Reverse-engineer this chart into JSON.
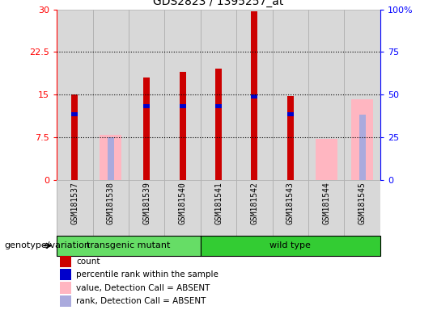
{
  "title": "GDS2823 / 1395257_at",
  "samples": [
    "GSM181537",
    "GSM181538",
    "GSM181539",
    "GSM181540",
    "GSM181541",
    "GSM181542",
    "GSM181543",
    "GSM181544",
    "GSM181545"
  ],
  "count_values": [
    15.0,
    null,
    18.0,
    19.0,
    19.5,
    29.7,
    14.7,
    null,
    null
  ],
  "rank_values": [
    11.5,
    null,
    13.0,
    13.0,
    13.0,
    14.7,
    11.5,
    null,
    null
  ],
  "absent_value": [
    null,
    7.9,
    null,
    null,
    null,
    null,
    null,
    7.2,
    14.2
  ],
  "absent_rank": [
    null,
    null,
    null,
    null,
    null,
    null,
    null,
    null,
    11.5
  ],
  "absent_rank2": [
    null,
    7.5,
    null,
    null,
    null,
    null,
    null,
    null,
    null
  ],
  "groups": [
    {
      "label": "transgenic mutant",
      "start": 0,
      "end": 3,
      "color": "#66dd66"
    },
    {
      "label": "wild type",
      "start": 4,
      "end": 8,
      "color": "#33cc33"
    }
  ],
  "group_label": "genotype/variation",
  "ylim_left": [
    0,
    30
  ],
  "ylim_right": [
    0,
    100
  ],
  "yticks_left": [
    0,
    7.5,
    15,
    22.5,
    30
  ],
  "yticks_right": [
    0,
    25,
    50,
    75,
    100
  ],
  "ytick_labels_left": [
    "0",
    "7.5",
    "15",
    "22.5",
    "30"
  ],
  "ytick_labels_right": [
    "0",
    "25",
    "50",
    "75",
    "100%"
  ],
  "hlines": [
    7.5,
    15,
    22.5
  ],
  "count_color": "#cc0000",
  "rank_color": "#0000cc",
  "absent_value_color": "#ffb6c1",
  "absent_rank_color": "#aaaadd",
  "legend_items": [
    {
      "color": "#cc0000",
      "label": "count"
    },
    {
      "color": "#0000cc",
      "label": "percentile rank within the sample"
    },
    {
      "color": "#ffb6c1",
      "label": "value, Detection Call = ABSENT"
    },
    {
      "color": "#aaaadd",
      "label": "rank, Detection Call = ABSENT"
    }
  ]
}
